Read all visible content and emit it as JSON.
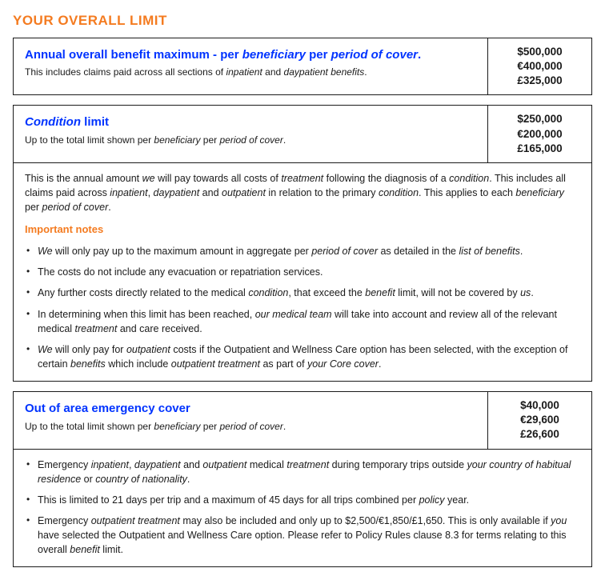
{
  "header": "YOUR OVERALL LIMIT",
  "sections": [
    {
      "title_html": "Annual overall benefit maximum - per <em>beneficiary</em> per <em>period of cover</em>.",
      "subtitle_html": "This includes claims paid across all sections of <em>inpatient</em> and <em>daypatient benefits</em>.",
      "amounts": [
        "$500,000",
        "€400,000",
        "£325,000"
      ],
      "has_body": false
    },
    {
      "title_html": "<em>Condition</em> limit",
      "subtitle_html": "Up to the total limit shown per <em>beneficiary</em> per <em>period of cover</em>.",
      "amounts": [
        "$250,000",
        "€200,000",
        "£165,000"
      ],
      "has_body": true,
      "desc_html": "This is the annual amount <em>we</em> will pay towards all costs of <em>treatment</em> following the diagnosis of a <em>condition</em>. This includes all claims paid across <em>inpatient</em>, <em>daypatient</em> and <em>outpatient</em> in relation to the primary <em>condition</em>. This applies to each <em>beneficiary</em> per <em>period of cover</em>.",
      "notes_heading": "Important notes",
      "notes_html": [
        "<em>We</em> will only pay up to the maximum amount in aggregate per <em>period of cover</em> as detailed in the <em>list of benefits</em>.",
        "The costs do not include any evacuation or repatriation services.",
        "Any further costs directly related to the medical <em>condition</em>, that exceed the <em>benefit</em> limit, will not be covered by <em>us</em>.",
        "In determining when this limit has been reached, <em>our medical team</em> will take into account and review all of the relevant medical <em>treatment</em> and care received.",
        "<em>We</em> will only pay for <em>outpatient</em> costs if the Outpatient and Wellness Care option has been selected, with the exception of certain <em>benefits</em> which include <em>outpatient treatment</em> as part of <em>your Core cover</em>."
      ]
    },
    {
      "title_html": "Out of area emergency cover",
      "subtitle_html": "Up to the total limit shown per <em>beneficiary</em> per <em>period of cover</em>.",
      "amounts": [
        "$40,000",
        "€29,600",
        "£26,600"
      ],
      "has_body": true,
      "bullets_only": true,
      "notes_html": [
        "Emergency <em>inpatient</em>, <em>daypatient</em> and <em>outpatient</em> medical <em>treatment</em> during temporary trips outside <em>your country of habitual residence</em> or <em>country of nationality</em>.",
        "This is limited to 21 days per trip and a maximum of 45 days for all trips combined per <em>policy</em> year.",
        "Emergency <em>outpatient treatment</em> may also be included and only up to $2,500/€1,850/£1,650. This is only available if <em>you</em> have selected the Outpatient and Wellness Care option. Please refer to Policy Rules clause 8.3 for terms relating to this overall <em>benefit</em> limit."
      ]
    }
  ],
  "colors": {
    "accent_orange": "#f47b20",
    "accent_blue": "#0033ff",
    "border": "#1a1a1a",
    "text": "#1a1a1a",
    "background": "#ffffff"
  }
}
